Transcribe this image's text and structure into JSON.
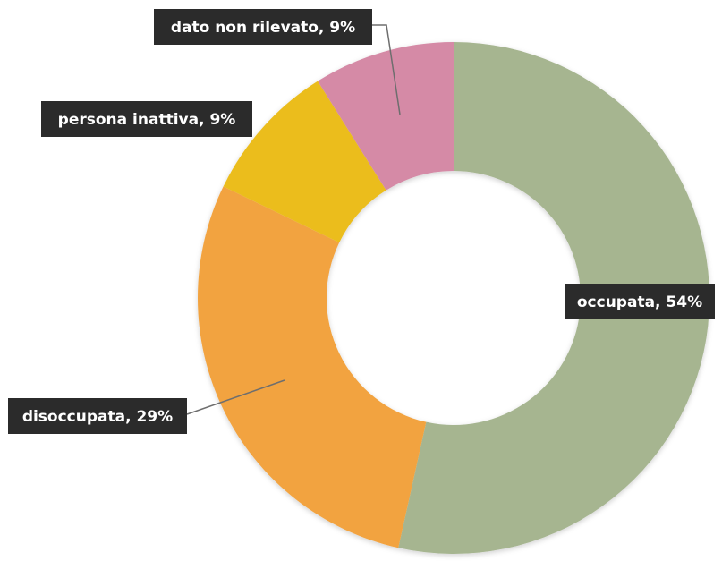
{
  "chart_data": {
    "type": "pie",
    "subtype": "donut",
    "legend": "none",
    "slices": [
      {
        "label": "occupata",
        "value": 54,
        "display": "occupata, 54%",
        "color": "#a6b590"
      },
      {
        "label": "disoccupata",
        "value": 29,
        "display": "disoccupata, 29%",
        "color": "#f2a33f"
      },
      {
        "label": "persona inattiva",
        "value": 9,
        "display": "persona inattiva, 9%",
        "color": "#ebbd1f"
      },
      {
        "label": "dato non rilevato",
        "value": 9,
        "display": "dato non rilevato, 9%",
        "color": "#d58aa6"
      }
    ],
    "label_box_color": "#2b2b2b",
    "leader_line_color": "#6e6e6e"
  }
}
